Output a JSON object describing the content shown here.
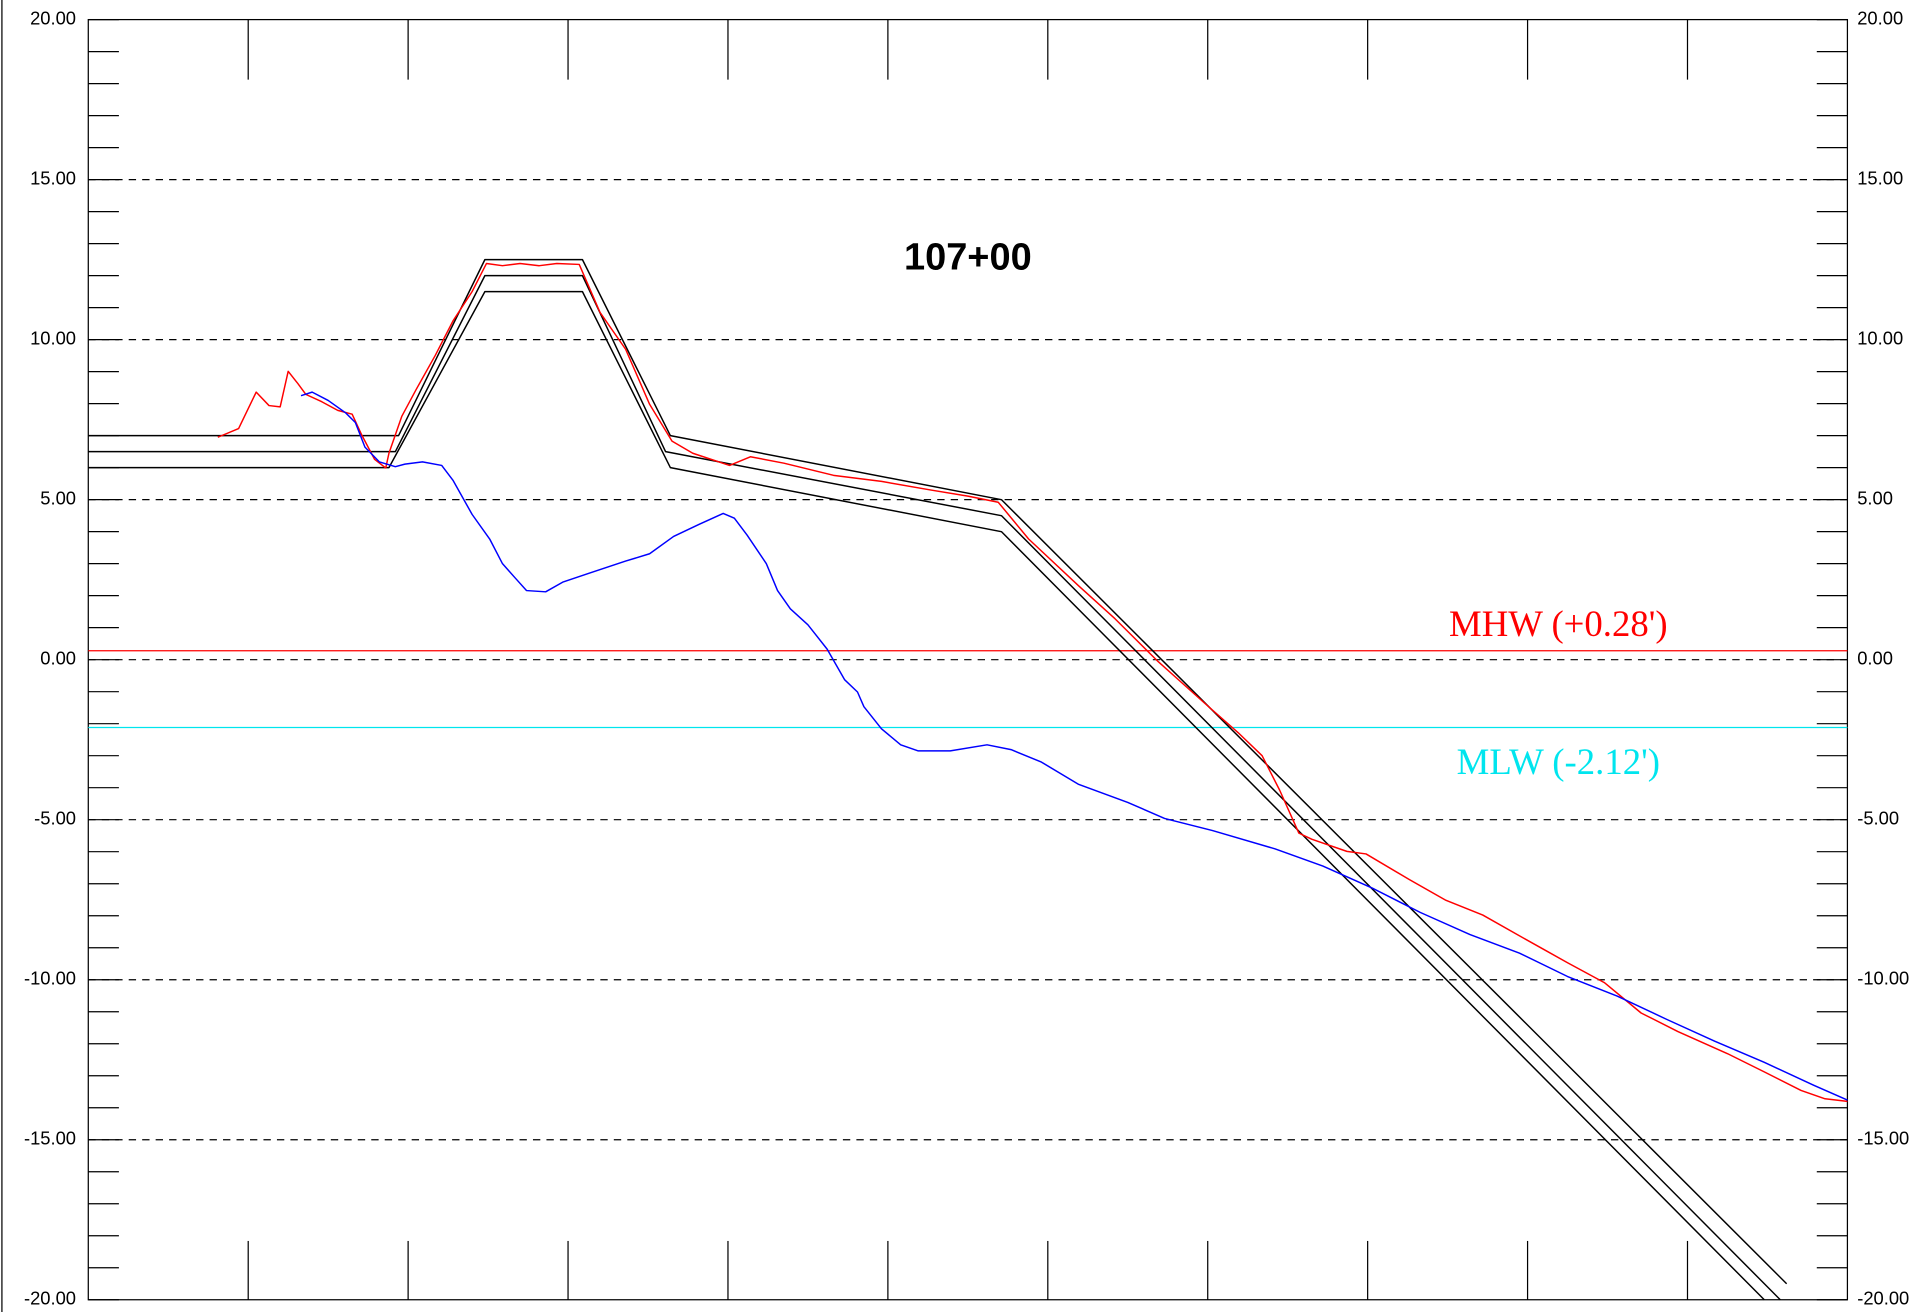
{
  "chart_data": {
    "type": "line",
    "title": "107+00",
    "xlim": [
      0,
      110
    ],
    "xticks": [
      10,
      20,
      30,
      40,
      50,
      60,
      70,
      80,
      90,
      100
    ],
    "ylim": [
      -20,
      20
    ],
    "yticks": [
      {
        "value": -20,
        "label": "-20.00"
      },
      {
        "value": -15,
        "label": "-15.00"
      },
      {
        "value": -10,
        "label": "-10.00"
      },
      {
        "value": -5,
        "label": "-5.00"
      },
      {
        "value": 0,
        "label": "0.00"
      },
      {
        "value": 5,
        "label": "5.00"
      },
      {
        "value": 10,
        "label": "10.00"
      },
      {
        "value": 15,
        "label": "15.00"
      },
      {
        "value": 20,
        "label": "20.00"
      }
    ],
    "yminorticks": [
      -19,
      -18,
      -17,
      -16,
      -14,
      -13,
      -12,
      -11,
      -9,
      -8,
      -7,
      -6,
      -4,
      -3,
      -2,
      -1,
      1,
      2,
      3,
      4,
      6,
      7,
      8,
      9,
      11,
      12,
      13,
      14,
      16,
      17,
      18,
      19
    ],
    "grid": true,
    "reference_lines": [
      {
        "label": "MHW (+0.28')",
        "value": 0.28,
        "color": "#ff0000"
      },
      {
        "label": "MLW (-2.12')",
        "value": -2.12,
        "color": "#00e5ee"
      }
    ],
    "series": [
      {
        "color": "#000000",
        "x": [
          0,
          19.4,
          24.8,
          30.9,
          36.4,
          57.1,
          106.2
        ],
        "values": [
          7,
          7,
          12.5,
          12.5,
          7,
          5,
          -19.5
        ]
      },
      {
        "color": "#000000",
        "x": [
          0,
          19.2,
          24.8,
          30.9,
          36.1,
          57.1,
          105.8
        ],
        "values": [
          6.5,
          6.5,
          12,
          12,
          6.5,
          4.5,
          -20
        ]
      },
      {
        "color": "#000000",
        "x": [
          0,
          18.8,
          24.8,
          30.9,
          36.4,
          57.1,
          104.8
        ],
        "values": [
          6,
          6,
          11.5,
          11.5,
          6,
          4,
          -20
        ]
      },
      {
        "color": "#ff0000",
        "x": [
          8.1,
          9.4,
          10.5,
          11.3,
          12.0,
          12.5,
          13.1,
          13.6,
          14.6,
          15.6,
          16.5,
          17.1,
          17.9,
          18.6,
          18.8,
          19.6,
          20.5,
          21.7,
          22.8,
          24.0,
          24.9,
          25.9,
          27.0,
          28.2,
          29.3,
          30.7,
          32.0,
          33.6,
          35.1,
          36.5,
          37.8,
          40.1,
          41.4,
          43.5,
          46.6,
          49.6,
          52.7,
          55.0,
          56.9,
          58.8,
          61.9,
          64.2,
          66.9,
          69.9,
          71.9,
          73.4,
          74.5,
          75.7,
          76.5,
          78.7,
          79.9,
          82.6,
          84.9,
          87.2,
          89.5,
          91.0,
          92.5,
          94.8,
          97.1,
          99.4,
          102.5,
          104.8,
          107.1,
          108.6,
          110
        ],
        "values": [
          6.95,
          7.22,
          8.36,
          7.94,
          7.9,
          9.01,
          8.63,
          8.29,
          8.06,
          7.79,
          7.67,
          7.02,
          6.26,
          5.99,
          6.45,
          7.6,
          8.44,
          9.51,
          10.58,
          11.5,
          12.38,
          12.31,
          12.38,
          12.31,
          12.38,
          12.35,
          10.85,
          9.7,
          7.98,
          6.83,
          6.45,
          6.07,
          6.34,
          6.14,
          5.76,
          5.57,
          5.3,
          5.11,
          4.92,
          3.77,
          2.32,
          1.28,
          -0.06,
          -1.4,
          -2.28,
          -3.0,
          -4.08,
          -5.42,
          -5.61,
          -5.99,
          -6.07,
          -6.87,
          -7.52,
          -7.98,
          -8.63,
          -9.05,
          -9.47,
          -10.09,
          -11.04,
          -11.62,
          -12.31,
          -12.88,
          -13.46,
          -13.72,
          -13.8
        ]
      },
      {
        "color": "#0000ff",
        "x": [
          13.3,
          14.0,
          15.0,
          16.1,
          16.7,
          17.3,
          18.2,
          19.2,
          19.8,
          20.9,
          22.1,
          22.8,
          24.0,
          25.1,
          25.9,
          26.7,
          27.4,
          28.6,
          29.7,
          31.3,
          33.6,
          35.1,
          36.6,
          38.2,
          39.7,
          40.4,
          41.2,
          42.4,
          43.1,
          43.9,
          45.0,
          46.2,
          47.3,
          48.1,
          48.5,
          49.6,
          50.8,
          51.9,
          53.9,
          56.2,
          57.7,
          59.6,
          61.9,
          65.0,
          67.3,
          70.3,
          74.2,
          77.2,
          80.3,
          83.3,
          86.4,
          89.5,
          92.5,
          95.6,
          98.7,
          101.7,
          104.8,
          107.9,
          110
        ],
        "values": [
          8.25,
          8.36,
          8.1,
          7.71,
          7.41,
          6.64,
          6.18,
          6.03,
          6.11,
          6.18,
          6.07,
          5.61,
          4.54,
          3.77,
          3.0,
          2.55,
          2.16,
          2.12,
          2.43,
          2.7,
          3.08,
          3.31,
          3.85,
          4.23,
          4.57,
          4.42,
          3.89,
          3.0,
          2.16,
          1.59,
          1.09,
          0.33,
          -0.63,
          -1.01,
          -1.47,
          -2.16,
          -2.66,
          -2.85,
          -2.85,
          -2.66,
          -2.81,
          -3.2,
          -3.89,
          -4.46,
          -4.96,
          -5.34,
          -5.91,
          -6.45,
          -7.14,
          -7.9,
          -8.59,
          -9.17,
          -9.9,
          -10.51,
          -11.24,
          -11.92,
          -12.58,
          -13.3,
          -13.76
        ]
      }
    ]
  }
}
